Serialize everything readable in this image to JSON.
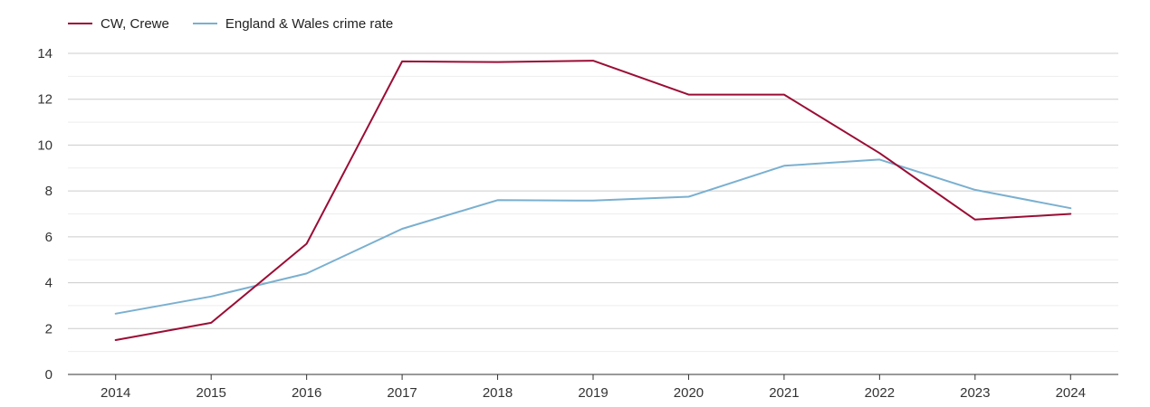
{
  "chart_data": {
    "type": "line",
    "x": [
      "2014",
      "2015",
      "2016",
      "2017",
      "2018",
      "2019",
      "2020",
      "2021",
      "2022",
      "2023",
      "2024"
    ],
    "series": [
      {
        "name": "CW, Crewe",
        "color": "#9b0d35",
        "values": [
          1.5,
          2.25,
          5.7,
          13.65,
          13.62,
          13.68,
          12.2,
          12.2,
          9.65,
          6.75,
          7.0
        ]
      },
      {
        "name": "England & Wales crime rate",
        "color": "#7ab0d0",
        "values": [
          2.65,
          3.4,
          4.4,
          6.35,
          7.6,
          7.58,
          7.75,
          9.1,
          9.37,
          8.05,
          7.25
        ]
      }
    ],
    "y_ticks": [
      "0",
      "2",
      "4",
      "6",
      "8",
      "10",
      "12",
      "14"
    ],
    "ylim": [
      0,
      14
    ],
    "grid": true,
    "legend_position": "top-left",
    "title": "",
    "xlabel": "",
    "ylabel": ""
  }
}
